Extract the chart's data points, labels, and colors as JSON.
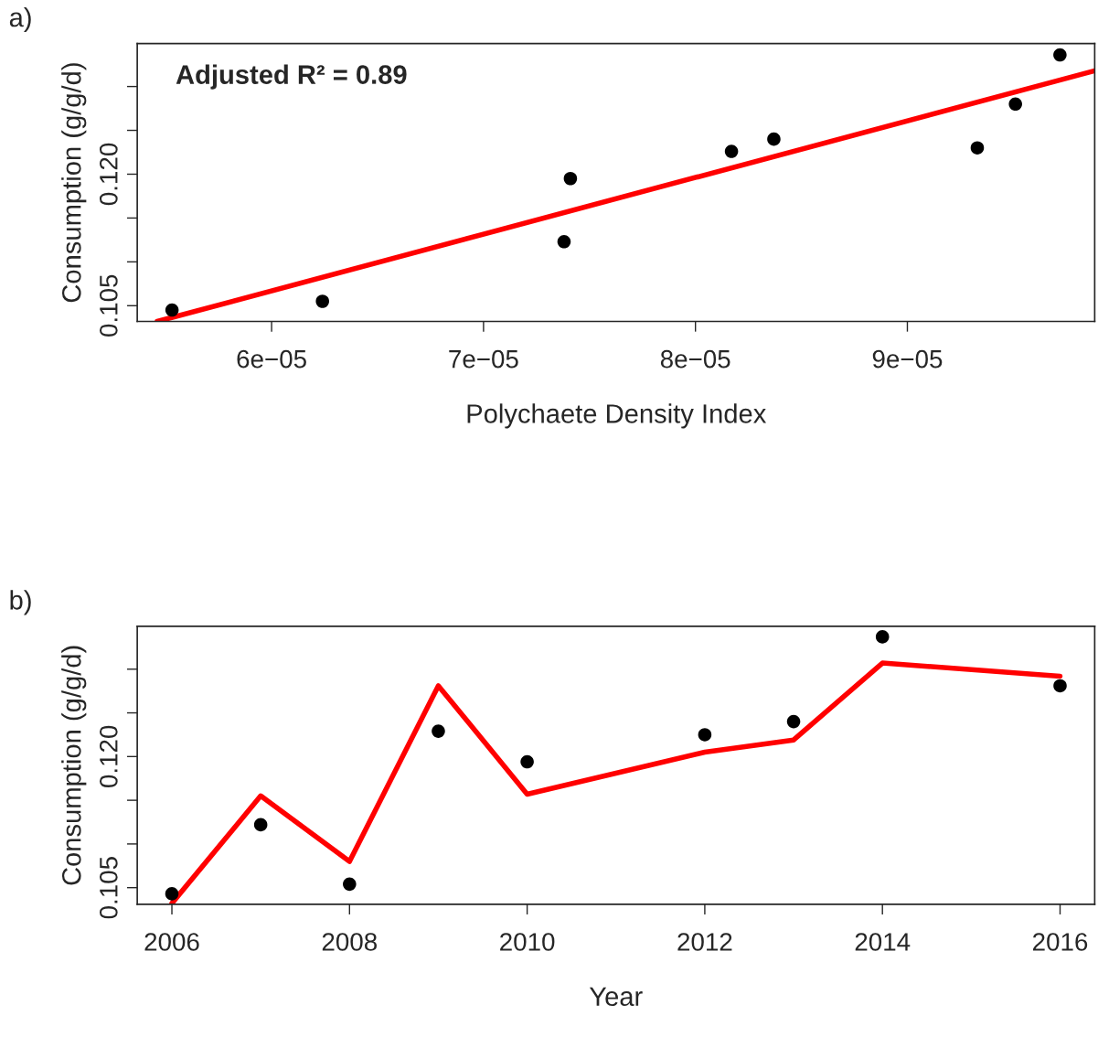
{
  "chart_data": [
    {
      "type": "scatter",
      "title": "a)",
      "xlabel": "Polychaete Density Index",
      "ylabel": "Consumption (g/g/d)",
      "marker": "circle",
      "grid": false,
      "legend": false,
      "xlim": [
        5.366e-05,
        9.884e-05
      ],
      "xticks": [
        {
          "value": 6e-05,
          "label": "6e−05"
        },
        {
          "value": 7e-05,
          "label": "7e−05"
        },
        {
          "value": 8e-05,
          "label": "8e−05"
        },
        {
          "value": 9e-05,
          "label": "9e−05"
        }
      ],
      "ylim": [
        0.1032,
        0.1349
      ],
      "yticks": [
        0.105,
        {
          "value": 0.11,
          "label": null
        },
        {
          "value": 0.115,
          "label": null
        },
        {
          "value": 0.12,
          "label": "0.120"
        },
        {
          "value": 0.125,
          "label": null
        },
        {
          "value": 0.13,
          "label": null
        }
      ],
      "annotations": [
        "Adjusted R² = 0.89"
      ],
      "series": [
        {
          "color": "#000000",
          "x": [
            5.53e-05,
            6.24e-05,
            7.38e-05,
            7.41e-05,
            8.17e-05,
            8.37e-05,
            9.33e-05,
            9.51e-05,
            9.72e-05
          ],
          "values": [
            0.1045,
            0.1055,
            0.1123,
            0.1195,
            0.1226,
            0.124,
            0.123,
            0.128,
            0.1336
          ]
        },
        {
          "type": "line",
          "color": "#ff0000",
          "marker": "none",
          "x": [
            5.46e-05,
            9.884e-05
          ],
          "values": [
            0.1032,
            0.1318
          ]
        }
      ]
    },
    {
      "type": "scatter",
      "title": "b)",
      "xlabel": "Year",
      "ylabel": "Consumption (g/g/d)",
      "marker": "circle",
      "grid": false,
      "legend": false,
      "xlim": [
        2005.61,
        2016.39
      ],
      "xticks": [
        2006,
        2008,
        2010,
        2012,
        2014,
        2016
      ],
      "ylim": [
        0.1031,
        0.1349
      ],
      "yticks": [
        0.105,
        {
          "value": 0.11,
          "label": null
        },
        {
          "value": 0.115,
          "label": null
        },
        {
          "value": 0.12,
          "label": "0.120"
        },
        {
          "value": 0.125,
          "label": null
        },
        {
          "value": 0.13,
          "label": null
        }
      ],
      "series": [
        {
          "color": "#000000",
          "x": [
            2006,
            2007,
            2008,
            2009,
            2010,
            2012,
            2013,
            2014,
            2016
          ],
          "values": [
            0.1043,
            0.1122,
            0.1054,
            0.1229,
            0.1194,
            0.1225,
            0.124,
            0.1337,
            0.1281
          ]
        },
        {
          "type": "line",
          "color": "#ff0000",
          "marker": "none",
          "x": [
            2006,
            2007,
            2008,
            2009,
            2010,
            2012,
            2013,
            2014,
            2016
          ],
          "values": [
            0.1032,
            0.1155,
            0.108,
            0.1281,
            0.1157,
            0.1205,
            0.1219,
            0.1307,
            0.1292
          ]
        }
      ]
    }
  ]
}
